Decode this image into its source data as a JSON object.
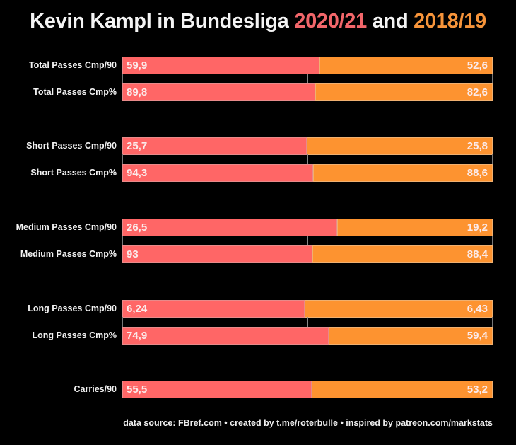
{
  "title": {
    "prefix": "Kevin Kampl in Bundesliga ",
    "season_a": "2020/21",
    "middle": " and ",
    "season_b": "2018/19"
  },
  "colors": {
    "season_a": "#ff6666",
    "season_b": "#fd9330",
    "background": "#000000"
  },
  "footer": "data source: FBref.com • created by t.me/roterbulle • inspired by patreon.com/markstats",
  "chart_data": {
    "type": "bar",
    "orientation": "horizontal-stacked-share",
    "title": "Kevin Kampl in Bundesliga 2020/21 and 2018/19",
    "series": [
      {
        "name": "2020/21",
        "values": [
          59.9,
          89.8,
          25.7,
          94.3,
          26.5,
          93,
          6.24,
          74.9,
          55.5
        ]
      },
      {
        "name": "2018/19",
        "values": [
          52.6,
          82.6,
          25.8,
          88.6,
          19.2,
          88.4,
          6.43,
          59.4,
          53.2
        ]
      }
    ],
    "categories": [
      "Total Passes Cmp/90",
      "Total Passes Cmp%",
      "Short Passes Cmp/90",
      "Short Passes Cmp%",
      "Medium Passes Cmp/90",
      "Medium Passes Cmp%",
      "Long Passes Cmp/90",
      "Long Passes Cmp%",
      "Carries/90"
    ],
    "display_labels": {
      "2020/21": [
        "59,9",
        "89,8",
        "25,7",
        "94,3",
        "26,5",
        "93",
        "6,24",
        "74,9",
        "55,5"
      ],
      "2018/19": [
        "52,6",
        "82,6",
        "25,8",
        "88,6",
        "19,2",
        "88,4",
        "6,43",
        "59,4",
        "53,2"
      ]
    },
    "groups": [
      [
        "Total Passes Cmp/90",
        "Total Passes Cmp%"
      ],
      [
        "Short Passes Cmp/90",
        "Short Passes Cmp%"
      ],
      [
        "Medium Passes Cmp/90",
        "Medium Passes Cmp%"
      ],
      [
        "Long Passes Cmp/90",
        "Long Passes Cmp%"
      ],
      [
        "Carries/90"
      ]
    ],
    "xlabel": "",
    "ylabel": "",
    "grid": false,
    "legend": "in-title"
  }
}
